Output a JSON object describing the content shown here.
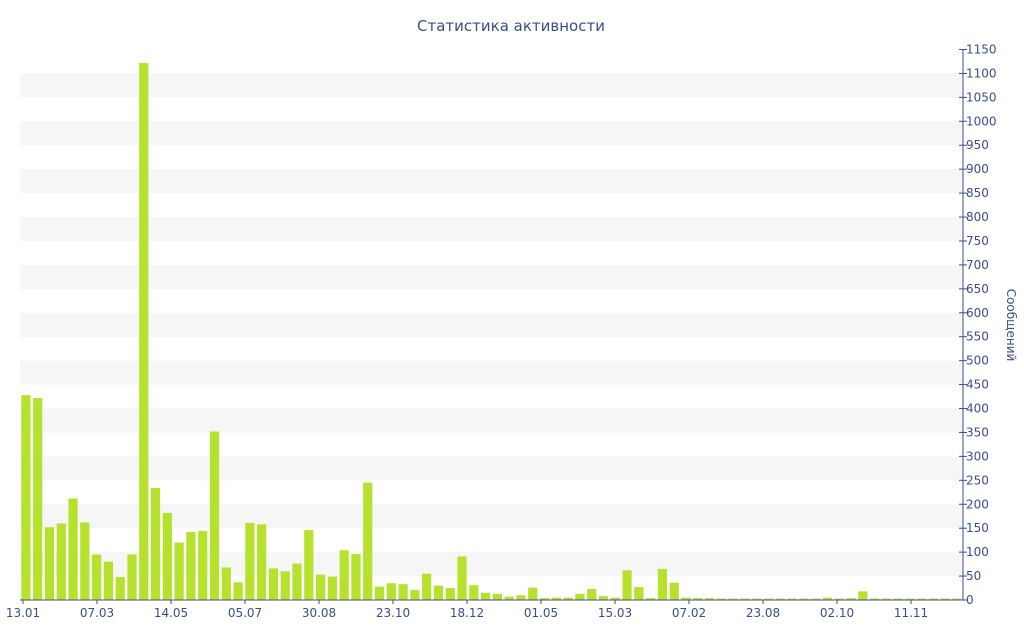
{
  "chart_data": {
    "type": "bar",
    "title": "Статистика активности",
    "xlabel": "",
    "ylabel": "Сообщений",
    "ylim": [
      0,
      1150
    ],
    "y_ticks": [
      0,
      50,
      100,
      150,
      200,
      250,
      300,
      350,
      400,
      450,
      500,
      550,
      600,
      650,
      700,
      750,
      800,
      850,
      900,
      950,
      1000,
      1050,
      1100,
      1150
    ],
    "y_axis_side": "right",
    "x_tick_labels": [
      "13.01",
      "07.03",
      "14.05",
      "05.07",
      "30.08",
      "23.10",
      "18.12",
      "01.05",
      "15.03",
      "07.02",
      "23.08",
      "02.10",
      "11.11"
    ],
    "grid": "horizontal bands",
    "legend": "none",
    "colors": {
      "bar": "#b6e12d",
      "text": "#3c4e8a",
      "band": "#f6f6f6",
      "axis": "#3c4e8a"
    },
    "values": [
      428,
      422,
      152,
      160,
      212,
      162,
      95,
      80,
      48,
      95,
      1122,
      234,
      182,
      120,
      142,
      144,
      352,
      68,
      37,
      161,
      158,
      66,
      60,
      76,
      146,
      53,
      49,
      104,
      96,
      245,
      28,
      35,
      33,
      21,
      55,
      30,
      25,
      91,
      31,
      15,
      13,
      7,
      10,
      26,
      4,
      5,
      5,
      13,
      23,
      8,
      5,
      62,
      27,
      4,
      65,
      36,
      5,
      4,
      4,
      3,
      3,
      3,
      3,
      3,
      3,
      3,
      3,
      3,
      5,
      3,
      4,
      18,
      3,
      3,
      3,
      3,
      3,
      3,
      3,
      3
    ]
  }
}
